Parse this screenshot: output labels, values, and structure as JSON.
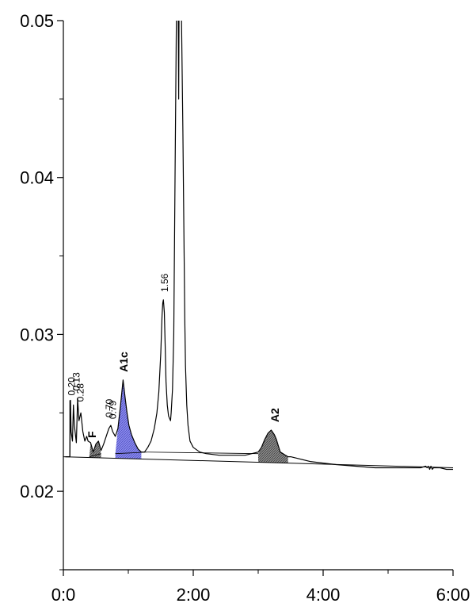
{
  "chart_data": {
    "type": "line",
    "title": "",
    "xlabel": "",
    "ylabel": "",
    "xlim": [
      0,
      6
    ],
    "ylim": [
      0.015,
      0.05
    ],
    "x_ticks": [
      {
        "value": 0,
        "label": "0:0"
      },
      {
        "value": 2,
        "label": "2:00"
      },
      {
        "value": 4,
        "label": "4:00"
      },
      {
        "value": 6,
        "label": "6:00"
      }
    ],
    "y_ticks": [
      {
        "value": 0.02,
        "label": "0.02"
      },
      {
        "value": 0.03,
        "label": "0.03"
      },
      {
        "value": 0.04,
        "label": "0.04"
      },
      {
        "value": 0.05,
        "label": "0.05"
      }
    ],
    "y_minor_ticks": [
      0.015,
      0.025,
      0.035,
      0.045
    ],
    "series": [
      {
        "x": [
          0.03,
          0.1,
          0.11,
          0.12,
          0.14,
          0.155,
          0.17,
          0.2,
          0.22,
          0.24,
          0.27,
          0.3,
          0.33,
          0.36,
          0.38,
          0.42,
          0.46,
          0.5,
          0.54,
          0.58,
          0.62,
          0.66,
          0.7,
          0.73,
          0.76,
          0.8,
          0.84,
          0.88,
          0.92,
          0.95,
          0.98,
          1.01,
          1.05,
          1.1,
          1.15,
          1.2,
          1.25,
          1.3,
          1.35,
          1.4,
          1.44,
          1.47,
          1.5,
          1.52,
          1.53,
          1.54,
          1.555,
          1.57,
          1.58,
          1.6,
          1.62,
          1.65,
          1.66,
          1.68,
          1.7,
          1.72,
          1.74,
          1.755,
          1.765,
          1.77,
          1.775,
          1.78,
          1.8,
          1.82,
          1.84,
          1.86,
          1.87,
          1.88,
          1.9,
          1.92,
          1.95,
          2.0,
          2.1,
          2.2,
          2.4,
          2.6,
          2.8,
          3.0,
          3.05,
          3.1,
          3.15,
          3.2,
          3.25,
          3.28,
          3.31,
          3.34,
          3.38,
          3.42,
          3.46,
          3.5,
          3.6,
          3.8,
          4.0,
          4.2,
          4.5,
          4.8,
          5.1,
          5.4,
          5.5,
          5.58,
          5.6,
          5.62,
          5.64,
          5.66,
          5.68,
          5.7,
          5.8,
          5.9,
          6.0
        ],
        "y": [
          0.0222,
          0.0222,
          0.0258,
          0.0238,
          0.0232,
          0.0255,
          0.0242,
          0.0231,
          0.0259,
          0.0245,
          0.025,
          0.0238,
          0.0232,
          0.0235,
          0.0232,
          0.0231,
          0.0225,
          0.023,
          0.0232,
          0.0226,
          0.023,
          0.0235,
          0.024,
          0.0242,
          0.0238,
          0.0235,
          0.024,
          0.0255,
          0.0271,
          0.026,
          0.025,
          0.0242,
          0.0236,
          0.0231,
          0.0227,
          0.0225,
          0.0225,
          0.0228,
          0.0232,
          0.024,
          0.025,
          0.0263,
          0.0288,
          0.0312,
          0.032,
          0.0322,
          0.0314,
          0.029,
          0.027,
          0.0255,
          0.0248,
          0.0245,
          0.025,
          0.0265,
          0.03,
          0.04,
          0.05,
          0.052,
          0.052,
          0.05,
          0.045,
          0.05,
          0.052,
          0.05,
          0.043,
          0.035,
          0.031,
          0.028,
          0.0255,
          0.0242,
          0.0232,
          0.0228,
          0.0225,
          0.0224,
          0.0223,
          0.0223,
          0.0223,
          0.0225,
          0.0228,
          0.0233,
          0.0237,
          0.0239,
          0.0236,
          0.0233,
          0.0229,
          0.0225,
          0.0224,
          0.0223,
          0.0222,
          0.0222,
          0.0221,
          0.0219,
          0.0218,
          0.0217,
          0.0216,
          0.0215,
          0.0215,
          0.0215,
          0.0215,
          0.0216,
          0.0215,
          0.0216,
          0.0214,
          0.0216,
          0.0214,
          0.0215,
          0.0215,
          0.0214,
          0.0214
        ]
      }
    ],
    "baseline": {
      "x": [
        0,
        6
      ],
      "y": [
        0.0222,
        0.0215
      ]
    },
    "peak_baselines": [
      {
        "x": [
          0.4,
          0.58
        ],
        "y": [
          0.0222,
          0.0224
        ]
      },
      {
        "x": [
          0.8,
          1.3
        ],
        "y": [
          0.0224,
          0.0225
        ]
      },
      {
        "x": [
          1.3,
          3.0
        ],
        "y": [
          0.0225,
          0.0224
        ]
      }
    ],
    "shaded_peaks": [
      {
        "x": [
          0.8,
          0.84,
          0.88,
          0.92,
          0.95,
          0.98,
          1.01,
          1.05,
          1.1,
          1.15,
          1.2
        ],
        "y": [
          0.0224,
          0.024,
          0.0255,
          0.0271,
          0.026,
          0.025,
          0.0242,
          0.0236,
          0.0231,
          0.0227,
          0.0225
        ],
        "color": "#7f7fe8"
      },
      {
        "x": [
          3.0,
          3.05,
          3.1,
          3.15,
          3.2,
          3.25,
          3.28,
          3.31,
          3.34,
          3.38,
          3.42,
          3.46
        ],
        "y": [
          0.0224,
          0.0228,
          0.0233,
          0.0237,
          0.0239,
          0.0236,
          0.0233,
          0.0229,
          0.0225,
          0.0224,
          0.0223,
          0.0222
        ],
        "color": "#7a7a7a"
      },
      {
        "x": [
          0.4,
          0.42,
          0.46,
          0.5,
          0.54,
          0.58
        ],
        "y": [
          0.0222,
          0.0231,
          0.0225,
          0.023,
          0.0232,
          0.0224
        ],
        "color": "#7a7a7a"
      }
    ],
    "peak_labels": [
      {
        "text": "0.20",
        "x": 0.13,
        "y": 0.0259,
        "bold": false
      },
      {
        "text": "0.13",
        "x": 0.2,
        "y": 0.0262,
        "bold": false
      },
      {
        "text": "0.28",
        "x": 0.26,
        "y": 0.0255,
        "bold": false
      },
      {
        "text": "F",
        "x": 0.45,
        "y": 0.0232,
        "bold": true
      },
      {
        "text": "0.70",
        "x": 0.71,
        "y": 0.0245,
        "bold": false
      },
      {
        "text": "0.79",
        "x": 0.76,
        "y": 0.0244,
        "bold": false
      },
      {
        "text": "A1c",
        "x": 0.94,
        "y": 0.0274,
        "bold": true
      },
      {
        "text": "1.56",
        "x": 1.56,
        "y": 0.0325,
        "bold": false
      },
      {
        "text": "A2",
        "x": 3.27,
        "y": 0.0242,
        "bold": true
      }
    ],
    "grid": false,
    "legend": "none"
  }
}
